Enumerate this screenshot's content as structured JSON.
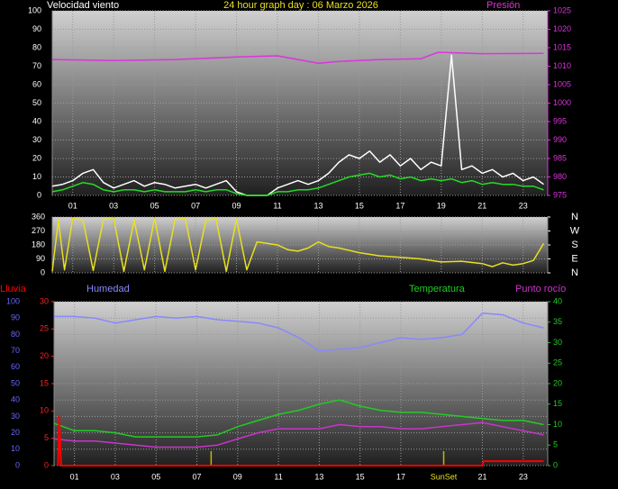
{
  "chart_data": [
    {
      "type": "line",
      "title": "24 hour graph day : 06 Marzo 2026",
      "ylabel": "Velocidad viento",
      "x": [
        0,
        0.5,
        1,
        1.5,
        2,
        2.5,
        3,
        3.5,
        4,
        4.5,
        5,
        5.5,
        6,
        6.5,
        7,
        7.5,
        8,
        8.5,
        9,
        9.5,
        10,
        10.5,
        11,
        11.5,
        12,
        12.5,
        13,
        13.5,
        14,
        14.5,
        15,
        15.5,
        16,
        16.5,
        17,
        17.5,
        18,
        18.5,
        19,
        19.5,
        20,
        20.5,
        21,
        21.5,
        22,
        22.5,
        23,
        23.5,
        24
      ],
      "xlim": [
        0,
        24.2
      ],
      "xticks": [
        {
          "value": 1,
          "label": "01"
        },
        {
          "value": 3,
          "label": "03"
        },
        {
          "value": 5,
          "label": "05"
        },
        {
          "value": 7,
          "label": "07"
        },
        {
          "value": 9,
          "label": "09"
        },
        {
          "value": 11,
          "label": "11"
        },
        {
          "value": 13,
          "label": "13"
        },
        {
          "value": 15,
          "label": "15"
        },
        {
          "value": 17,
          "label": "17"
        },
        {
          "value": 19,
          "label": "19"
        },
        {
          "value": 21,
          "label": "21"
        },
        {
          "value": 23,
          "label": "23"
        }
      ],
      "ylim": [
        0,
        100
      ],
      "yticks": [
        0,
        10,
        20,
        30,
        40,
        50,
        60,
        70,
        80,
        90,
        100
      ],
      "y2lim": [
        975,
        1025
      ],
      "y2ticks": [
        975,
        980,
        985,
        990,
        995,
        1000,
        1005,
        1010,
        1015,
        1020,
        1025
      ],
      "grid": true,
      "series": [
        {
          "color": "#ffffff",
          "values": [
            5,
            6,
            8,
            12,
            14,
            7,
            4,
            6,
            8,
            5,
            7,
            6,
            4,
            5,
            6,
            4,
            6,
            8,
            2,
            0,
            0,
            0,
            4,
            6,
            8,
            6,
            8,
            12,
            18,
            22,
            20,
            24,
            18,
            22,
            16,
            20,
            14,
            18,
            16,
            76,
            14,
            16,
            12,
            14,
            10,
            12,
            8,
            10,
            6
          ]
        },
        {
          "color": "#22dd22",
          "values": [
            2,
            3,
            5,
            7,
            6,
            3,
            2,
            3,
            3,
            2,
            3,
            2,
            2,
            2,
            3,
            2,
            3,
            3,
            1,
            0,
            0,
            0,
            2,
            2,
            3,
            3,
            4,
            6,
            8,
            10,
            11,
            12,
            10,
            11,
            9,
            10,
            8,
            9,
            8,
            9,
            7,
            8,
            6,
            7,
            6,
            6,
            5,
            5,
            3
          ]
        },
        {
          "name": "Presión",
          "color": "#dd33dd",
          "axis": "y2",
          "x": [
            0,
            3,
            6,
            9,
            11,
            12,
            13,
            14,
            16,
            18,
            18.8,
            19.2,
            21,
            24
          ],
          "values": [
            1011.8,
            1011.5,
            1011.8,
            1012.5,
            1012.8,
            1011.8,
            1010.8,
            1011.3,
            1011.8,
            1012,
            1013.7,
            1013.7,
            1013.4,
            1013.5
          ]
        }
      ]
    },
    {
      "type": "line",
      "x": [
        0,
        0.3,
        0.6,
        1,
        1.5,
        2,
        2.5,
        3,
        3.5,
        4,
        4.5,
        5,
        5.5,
        6,
        6.5,
        7,
        7.5,
        8,
        8.5,
        9,
        9.5,
        10,
        10.5,
        11,
        11.5,
        12,
        12.5,
        13,
        13.5,
        14,
        15,
        16,
        17,
        18,
        19,
        20,
        21,
        21.5,
        22,
        22.5,
        23,
        23.5,
        24
      ],
      "xlim": [
        0,
        24.2
      ],
      "xticks": [
        {
          "value": 1,
          "label": "01"
        },
        {
          "value": 3,
          "label": "03"
        },
        {
          "value": 5,
          "label": "05"
        },
        {
          "value": 7,
          "label": "07"
        },
        {
          "value": 9,
          "label": "09"
        },
        {
          "value": 11,
          "label": "11"
        },
        {
          "value": 13,
          "label": "13"
        },
        {
          "value": 15,
          "label": "15"
        },
        {
          "value": 17,
          "label": "17"
        },
        {
          "value": 19,
          "label": "19"
        },
        {
          "value": 21,
          "label": "21"
        },
        {
          "value": 23,
          "label": "23"
        }
      ],
      "ylim": [
        0,
        360
      ],
      "yticks": [
        0,
        90,
        180,
        270,
        360
      ],
      "y2lim": [
        0,
        360
      ],
      "y2ticks": [
        {
          "value": 0,
          "label": "N"
        },
        {
          "value": 90,
          "label": "E"
        },
        {
          "value": 180,
          "label": "S"
        },
        {
          "value": 270,
          "label": "W"
        },
        {
          "value": 360,
          "label": "N"
        }
      ],
      "grid": true,
      "series": [
        {
          "color": "#e8e020",
          "values": [
            10,
            340,
            20,
            350,
            340,
            15,
            345,
            350,
            10,
            340,
            20,
            350,
            10,
            345,
            350,
            20,
            340,
            350,
            10,
            345,
            20,
            200,
            190,
            180,
            150,
            140,
            160,
            200,
            170,
            160,
            130,
            110,
            100,
            90,
            70,
            75,
            60,
            40,
            65,
            50,
            60,
            80,
            190
          ]
        }
      ]
    },
    {
      "type": "line",
      "x": [
        0,
        1,
        2,
        3,
        4,
        5,
        6,
        7,
        8,
        9,
        10,
        11,
        12,
        13,
        14,
        15,
        16,
        17,
        18,
        19,
        20,
        21,
        22,
        23,
        24
      ],
      "xlim": [
        0,
        24.2
      ],
      "xticks": [
        {
          "value": 1,
          "label": "01"
        },
        {
          "value": 3,
          "label": "03"
        },
        {
          "value": 5,
          "label": "05"
        },
        {
          "value": 7,
          "label": "07"
        },
        {
          "value": 9,
          "label": "09"
        },
        {
          "value": 11,
          "label": "11"
        },
        {
          "value": 13,
          "label": "13"
        },
        {
          "value": 15,
          "label": "15"
        },
        {
          "value": 17,
          "label": "17"
        },
        {
          "value": 21,
          "label": "21"
        },
        {
          "value": 23,
          "label": "23"
        }
      ],
      "ylim": [
        0,
        100
      ],
      "yticks": [
        0,
        10,
        20,
        30,
        40,
        50,
        60,
        70,
        80,
        90,
        100
      ],
      "y3lim": [
        0,
        30
      ],
      "y3ticks": [
        0,
        5,
        10,
        15,
        20,
        25,
        30
      ],
      "y2lim": [
        0,
        40
      ],
      "y2ticks": [
        0,
        5,
        10,
        15,
        20,
        25,
        30,
        35,
        40
      ],
      "grid": true,
      "sunrise": 7.7,
      "sunset": {
        "value": 19.1,
        "label": "SunSet"
      },
      "series": [
        {
          "name": "Humedad",
          "color": "#8888ff",
          "values": [
            91,
            91,
            90,
            87,
            89,
            91,
            90,
            91,
            89,
            88,
            87,
            84,
            78,
            70,
            71,
            72,
            75,
            78,
            77,
            78,
            80,
            93,
            92,
            87,
            84
          ]
        },
        {
          "name": "Temperatura",
          "color": "#22cc22",
          "axis": "y2",
          "values": [
            10.3,
            8.5,
            8.5,
            8,
            7,
            7,
            7,
            7,
            7.5,
            9.5,
            11,
            12.5,
            13.5,
            15,
            16,
            14.5,
            13.5,
            13,
            13,
            12.5,
            12,
            11.5,
            11,
            11,
            10
          ]
        },
        {
          "name": "Punto rocío",
          "color": "#cc33cc",
          "axis": "y2",
          "values": [
            6.5,
            6,
            6,
            5.5,
            5,
            4.5,
            4.5,
            4.5,
            5,
            6.5,
            8,
            9,
            9,
            9,
            10,
            9.5,
            9.5,
            9,
            9,
            9.5,
            10,
            10.5,
            9.5,
            8.5,
            7.5
          ]
        },
        {
          "name": "Lluvia",
          "color": "#ff0000",
          "axis": "y3",
          "x": [
            0.2,
            0.25,
            0.35,
            21,
            21.05,
            24
          ],
          "values": [
            0,
            9,
            0,
            0,
            0.8,
            0.8
          ]
        }
      ]
    }
  ]
}
